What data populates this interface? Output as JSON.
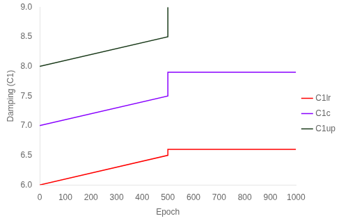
{
  "chart_data": {
    "type": "line",
    "xlabel": "Epoch",
    "ylabel": "Damping (C1)",
    "xlim": [
      0,
      1000
    ],
    "ylim": [
      6,
      9
    ],
    "xticks": [
      0,
      100,
      200,
      300,
      400,
      500,
      600,
      700,
      800,
      900,
      1000
    ],
    "yticks": [
      {
        "value": 6,
        "label": "6.0"
      },
      6.5,
      {
        "value": 7,
        "label": "7.0"
      },
      7.5,
      {
        "value": 8,
        "label": "8.0"
      },
      8.5,
      {
        "value": 9,
        "label": "9.0"
      }
    ],
    "grid": false,
    "legend": "right",
    "series": [
      {
        "name": "C1lr",
        "color": "#ff0000",
        "x": [
          0,
          500,
          500,
          1000
        ],
        "values": [
          6.0,
          6.5,
          6.6,
          6.6
        ]
      },
      {
        "name": "C1c",
        "color": "#8800ff",
        "x": [
          0,
          500,
          500,
          1000
        ],
        "values": [
          7.0,
          7.5,
          7.9,
          7.9
        ]
      },
      {
        "name": "C1up",
        "color": "#1a3a1a",
        "x": [
          0,
          500,
          500
        ],
        "values": [
          8.0,
          8.5,
          9.0
        ]
      }
    ]
  }
}
